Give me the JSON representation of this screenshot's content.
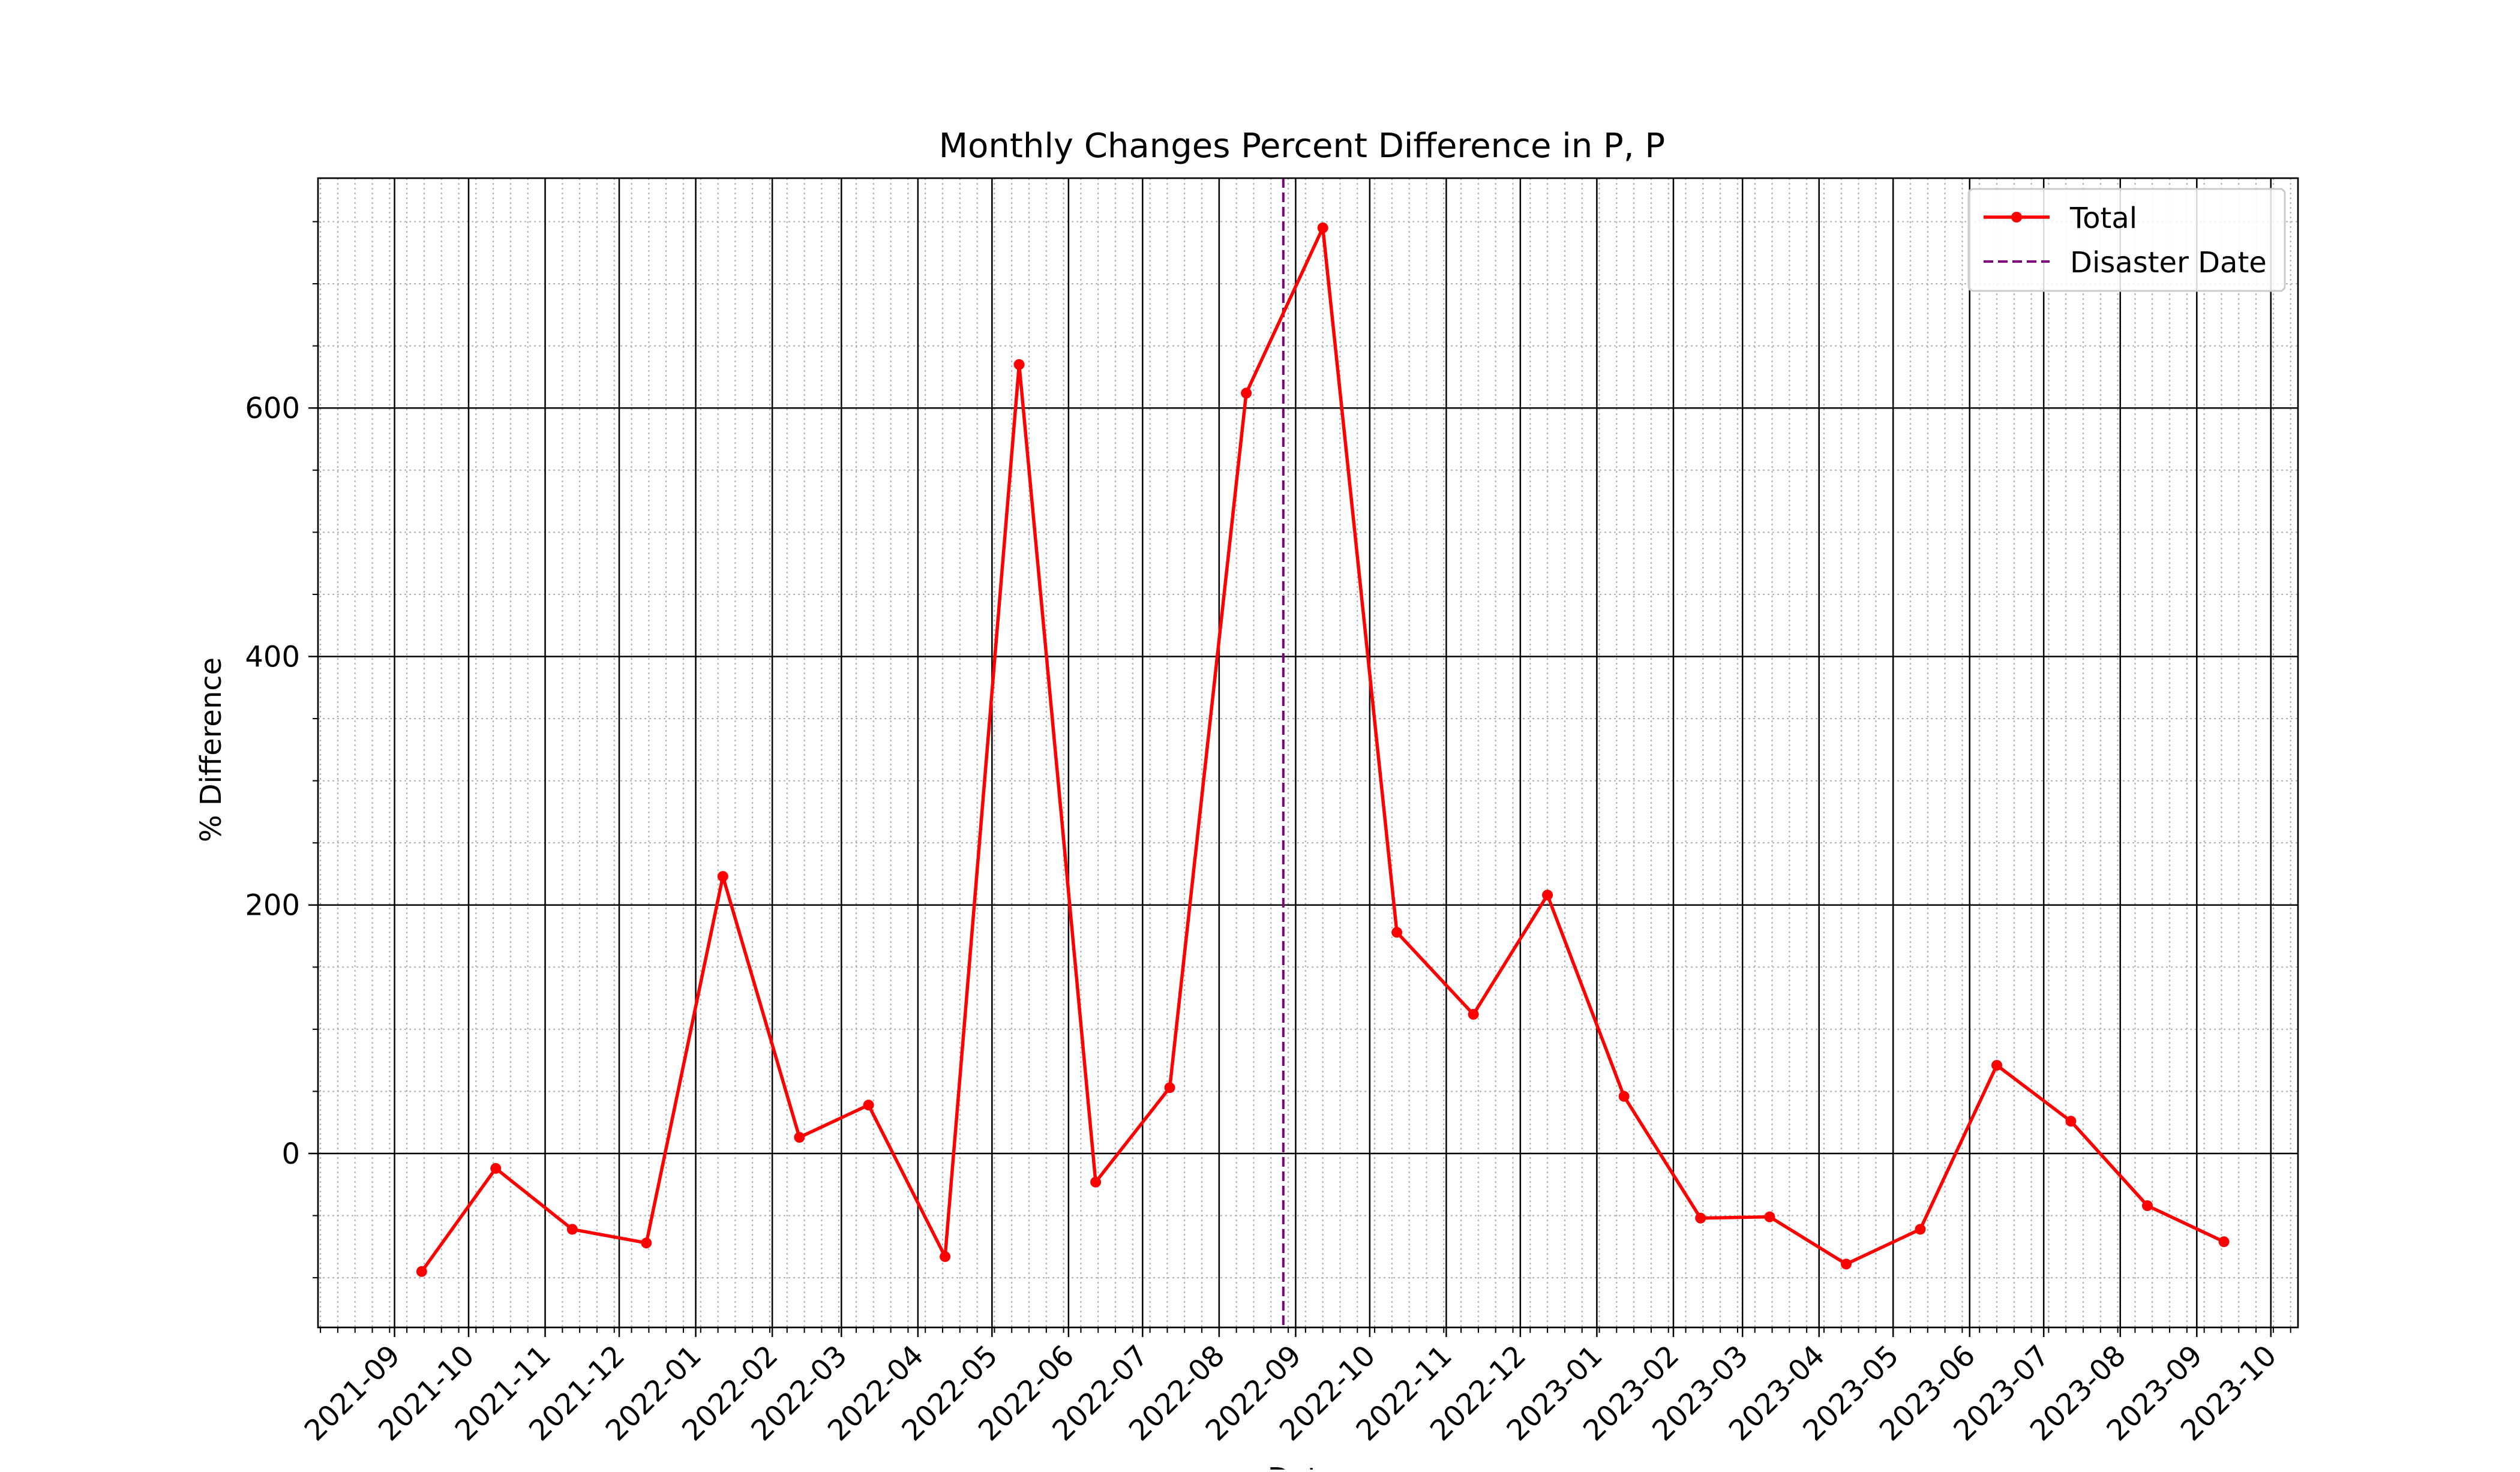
{
  "chart_data": {
    "type": "line",
    "title": "Monthly Changes Percent Difference in P, P",
    "xlabel": "Date",
    "ylabel": "% Difference",
    "xlim": [
      "2021-08-01",
      "2023-10-12"
    ],
    "ylim": [
      -140,
      785
    ],
    "y_major_ticks": [
      0,
      200,
      400,
      600
    ],
    "y_minor_step": 50,
    "x_tick_labels": [
      "2021-09",
      "2021-10",
      "2021-11",
      "2021-12",
      "2022-01",
      "2022-02",
      "2022-03",
      "2022-04",
      "2022-05",
      "2022-06",
      "2022-07",
      "2022-08",
      "2022-09",
      "2022-10",
      "2022-11",
      "2022-12",
      "2023-01",
      "2023-02",
      "2023-03",
      "2023-04",
      "2023-05",
      "2023-06",
      "2023-07",
      "2023-08",
      "2023-09",
      "2023-10"
    ],
    "x_tick_dates": [
      "2021-09-01",
      "2021-10-01",
      "2021-11-01",
      "2021-12-01",
      "2022-01-01",
      "2022-02-01",
      "2022-03-01",
      "2022-04-01",
      "2022-05-01",
      "2022-06-01",
      "2022-07-01",
      "2022-08-01",
      "2022-09-01",
      "2022-10-01",
      "2022-11-01",
      "2022-12-01",
      "2023-01-01",
      "2023-02-01",
      "2023-03-01",
      "2023-04-01",
      "2023-05-01",
      "2023-06-01",
      "2023-07-01",
      "2023-08-01",
      "2023-09-01",
      "2023-10-01"
    ],
    "grid": true,
    "legend_position": "top-right",
    "series": [
      {
        "name": "Total",
        "color": "#ff0000",
        "marker": "circle",
        "x": [
          "2021-09-12",
          "2021-10-12",
          "2021-11-12",
          "2021-12-12",
          "2022-01-12",
          "2022-02-12",
          "2022-03-12",
          "2022-04-12",
          "2022-05-12",
          "2022-06-12",
          "2022-07-12",
          "2022-08-12",
          "2022-09-12",
          "2022-10-12",
          "2022-11-12",
          "2022-12-12",
          "2023-01-12",
          "2023-02-12",
          "2023-03-12",
          "2023-04-12",
          "2023-05-12",
          "2023-06-12",
          "2023-07-12",
          "2023-08-12",
          "2023-09-12"
        ],
        "y": [
          -95,
          -12,
          -61,
          -72,
          223,
          13,
          39,
          -83,
          635,
          -23,
          53,
          612,
          745,
          178,
          112,
          208,
          46,
          -52,
          -51,
          -89,
          -61,
          71,
          26,
          -42,
          -71
        ]
      }
    ],
    "annotations": [
      {
        "name": "Disaster Date",
        "type": "vline",
        "x": "2022-08-27",
        "color": "#800080",
        "style": "dashed"
      }
    ]
  }
}
